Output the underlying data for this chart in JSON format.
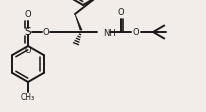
{
  "bg_color": "#f2ede8",
  "line_color": "#1a1a1a",
  "lw": 1.4,
  "figsize": [
    2.06,
    1.12
  ],
  "dpi": 100,
  "xlim": [
    0,
    206
  ],
  "ylim": [
    0,
    112
  ]
}
